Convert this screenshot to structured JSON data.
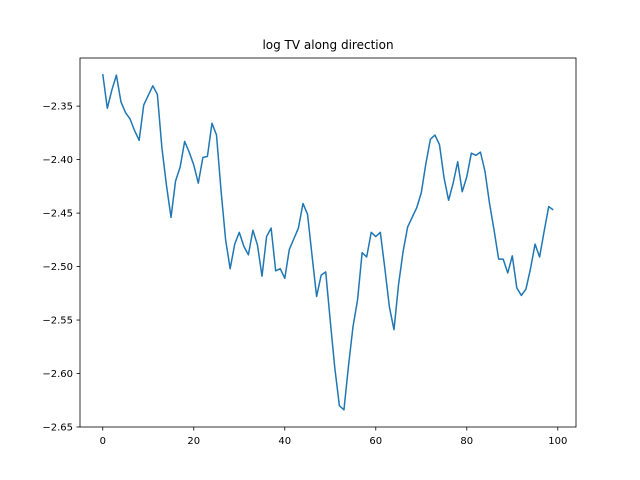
{
  "chart_data": {
    "type": "line",
    "title": "log TV along direction",
    "xlabel": "",
    "ylabel": "",
    "xlim": [
      -5,
      104
    ],
    "ylim": [
      -2.65,
      -2.305
    ],
    "x_ticks": [
      0,
      20,
      40,
      60,
      80,
      100
    ],
    "y_ticks": [
      -2.65,
      -2.6,
      -2.55,
      -2.5,
      -2.45,
      -2.4,
      -2.35
    ],
    "x_tick_labels": [
      "0",
      "20",
      "40",
      "60",
      "80",
      "100"
    ],
    "y_tick_labels": [
      "−2.65",
      "−2.60",
      "−2.55",
      "−2.50",
      "−2.45",
      "−2.40",
      "−2.35"
    ],
    "grid": false,
    "series": [
      {
        "color": "#1f77b4",
        "x": [
          0,
          1,
          2,
          3,
          4,
          5,
          6,
          7,
          8,
          9,
          10,
          11,
          12,
          13,
          14,
          15,
          16,
          17,
          18,
          19,
          20,
          21,
          22,
          23,
          24,
          25,
          26,
          27,
          28,
          29,
          30,
          31,
          32,
          33,
          34,
          35,
          36,
          37,
          38,
          39,
          40,
          41,
          42,
          43,
          44,
          45,
          46,
          47,
          48,
          49,
          50,
          51,
          52,
          53,
          54,
          55,
          56,
          57,
          58,
          59,
          60,
          61,
          62,
          63,
          64,
          65,
          66,
          67,
          68,
          69,
          70,
          71,
          72,
          73,
          74,
          75,
          76,
          77,
          78,
          79,
          80,
          81,
          82,
          83,
          84,
          85,
          86,
          87,
          88,
          89,
          90,
          91,
          92,
          93,
          94,
          95,
          96,
          97,
          98,
          99
        ],
        "y": [
          -2.32,
          -2.352,
          -2.335,
          -2.321,
          -2.346,
          -2.356,
          -2.362,
          -2.373,
          -2.382,
          -2.349,
          -2.34,
          -2.331,
          -2.339,
          -2.389,
          -2.424,
          -2.454,
          -2.42,
          -2.407,
          -2.383,
          -2.393,
          -2.405,
          -2.422,
          -2.398,
          -2.397,
          -2.366,
          -2.377,
          -2.429,
          -2.475,
          -2.502,
          -2.479,
          -2.468,
          -2.481,
          -2.489,
          -2.466,
          -2.48,
          -2.509,
          -2.472,
          -2.464,
          -2.504,
          -2.502,
          -2.511,
          -2.484,
          -2.474,
          -2.464,
          -2.441,
          -2.451,
          -2.49,
          -2.528,
          -2.508,
          -2.505,
          -2.551,
          -2.595,
          -2.63,
          -2.634,
          -2.593,
          -2.556,
          -2.531,
          -2.487,
          -2.491,
          -2.468,
          -2.472,
          -2.468,
          -2.502,
          -2.538,
          -2.559,
          -2.517,
          -2.486,
          -2.463,
          -2.454,
          -2.445,
          -2.431,
          -2.404,
          -2.381,
          -2.377,
          -2.386,
          -2.417,
          -2.438,
          -2.422,
          -2.402,
          -2.43,
          -2.416,
          -2.394,
          -2.396,
          -2.393,
          -2.411,
          -2.441,
          -2.466,
          -2.493,
          -2.493,
          -2.506,
          -2.49,
          -2.52,
          -2.527,
          -2.521,
          -2.502,
          -2.479,
          -2.491,
          -2.467,
          -2.444,
          -2.447
        ]
      }
    ]
  }
}
